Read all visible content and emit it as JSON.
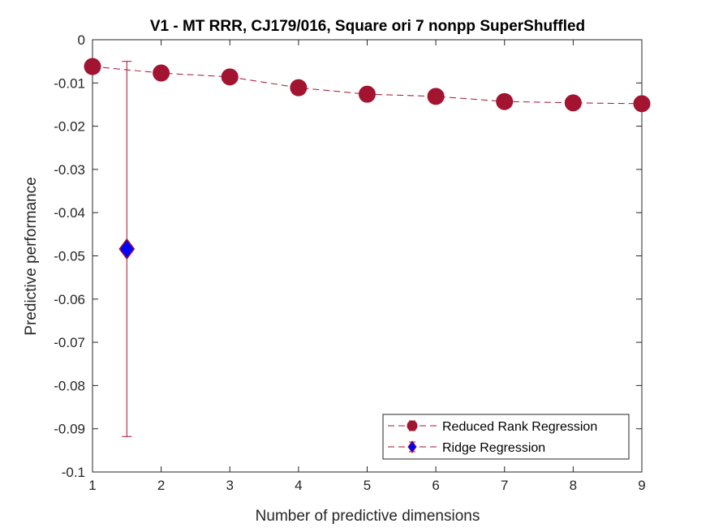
{
  "chart_data": {
    "type": "scatter",
    "title": "V1 - MT RRR, CJ179/016, Square ori 7 nonpp  SuperShuffled",
    "xlabel": "Number of predictive dimensions",
    "ylabel": "Predictive performance",
    "xlim": [
      1,
      9
    ],
    "ylim": [
      -0.1,
      0
    ],
    "xticks": [
      "1",
      "2",
      "3",
      "4",
      "5",
      "6",
      "7",
      "8",
      "9"
    ],
    "yticks": [
      "0",
      "-0.01",
      "-0.02",
      "-0.03",
      "-0.04",
      "-0.05",
      "-0.06",
      "-0.07",
      "-0.08",
      "-0.09",
      "-0.1"
    ],
    "grid": false,
    "legend_location": "bottom-right",
    "series": [
      {
        "name": "Reduced Rank Regression",
        "marker": "circle",
        "line": "dashed",
        "color": "#A2142F",
        "x": [
          1,
          2,
          3,
          4,
          5,
          6,
          7,
          8,
          9
        ],
        "y": [
          -0.0062,
          -0.0077,
          -0.0086,
          -0.0111,
          -0.0126,
          -0.0131,
          -0.0143,
          -0.0146,
          -0.0148
        ]
      },
      {
        "name": "Ridge Regression",
        "marker": "diamond",
        "line": "dashed",
        "color": "#0000FF",
        "edge_color": "#A2142F",
        "x": [
          1.5
        ],
        "y": [
          -0.0484
        ],
        "error_low": [
          -0.0918
        ],
        "error_high": [
          -0.005
        ]
      }
    ]
  }
}
